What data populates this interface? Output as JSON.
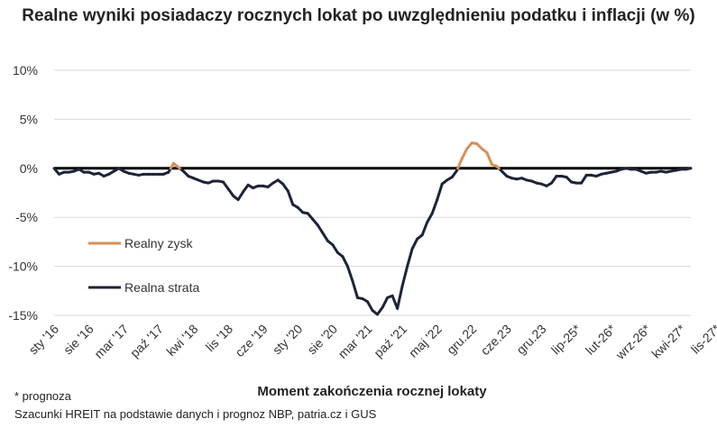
{
  "chart_data": {
    "type": "line",
    "title": "Realne wyniki posiadaczy rocznych lokat po uwzględnieniu podatku i inflacji (w %)",
    "xlabel": "Moment zakończenia rocznej lokaty",
    "ylabel": "",
    "ylim": [
      -15,
      10
    ],
    "yticks": [
      10,
      5,
      0,
      -5,
      -10,
      -15
    ],
    "ytick_labels": [
      "10%",
      "5%",
      "0%",
      "-5%",
      "-10%",
      "-15%"
    ],
    "grid": true,
    "legend_position": "left",
    "x_tick_labels": [
      "sty '16",
      "sie '16",
      "mar '17",
      "paź '17",
      "kwi '18",
      "lis '18",
      "cze '19",
      "sty '20",
      "sie '20",
      "mar '21",
      "paź '21",
      "maj '22",
      "gru.22",
      "cze.23",
      "gru.23",
      "lip-25*",
      "lut-26*",
      "wrz-26*",
      "kwi-27*",
      "lis-27*"
    ],
    "x_start": "2016-01",
    "series": [
      {
        "name": "Realny zysk",
        "color": "#d4915a"
      },
      {
        "name": "Realna strata",
        "color": "#1d2338"
      }
    ],
    "values": [
      0.0,
      -0.6,
      -0.4,
      -0.4,
      -0.3,
      -0.1,
      -0.4,
      -0.4,
      -0.6,
      -0.5,
      -0.8,
      -0.6,
      -0.3,
      0.0,
      -0.3,
      -0.5,
      -0.6,
      -0.7,
      -0.6,
      -0.6,
      -0.6,
      -0.6,
      -0.6,
      -0.4,
      0.5,
      0.1,
      -0.3,
      -0.8,
      -1.0,
      -1.2,
      -1.4,
      -1.5,
      -1.3,
      -1.3,
      -1.4,
      -2.1,
      -2.8,
      -3.2,
      -2.4,
      -1.7,
      -2.0,
      -1.8,
      -1.8,
      -1.9,
      -1.5,
      -1.2,
      -1.6,
      -2.3,
      -3.7,
      -4.0,
      -4.5,
      -4.6,
      -5.2,
      -5.8,
      -6.6,
      -7.4,
      -7.8,
      -8.6,
      -9.0,
      -10.0,
      -11.5,
      -13.2,
      -13.3,
      -13.6,
      -14.5,
      -14.9,
      -14.2,
      -13.2,
      -13.0,
      -14.3,
      -12.0,
      -10.0,
      -8.2,
      -7.2,
      -6.8,
      -5.5,
      -4.6,
      -3.2,
      -1.6,
      -1.2,
      -0.9,
      -0.2,
      1.0,
      2.0,
      2.6,
      2.5,
      2.0,
      1.6,
      0.4,
      0.2,
      -0.3,
      -0.8,
      -1.0,
      -1.1,
      -1.0,
      -1.2,
      -1.3,
      -1.5,
      -1.6,
      -1.8,
      -1.5,
      -0.8,
      -0.8,
      -0.9,
      -1.4,
      -1.5,
      -1.5,
      -0.7,
      -0.7,
      -0.8,
      -0.6,
      -0.5,
      -0.4,
      -0.3,
      -0.1,
      0.0,
      -0.1,
      -0.1,
      -0.3,
      -0.5,
      -0.4,
      -0.4,
      -0.3,
      -0.4,
      -0.3,
      -0.2,
      -0.1,
      -0.1,
      0.0
    ]
  },
  "note": "* prognoza",
  "source": "Szacunki HREIT na podstawie danych i prognoz NBP,  patria.cz  i GUS"
}
